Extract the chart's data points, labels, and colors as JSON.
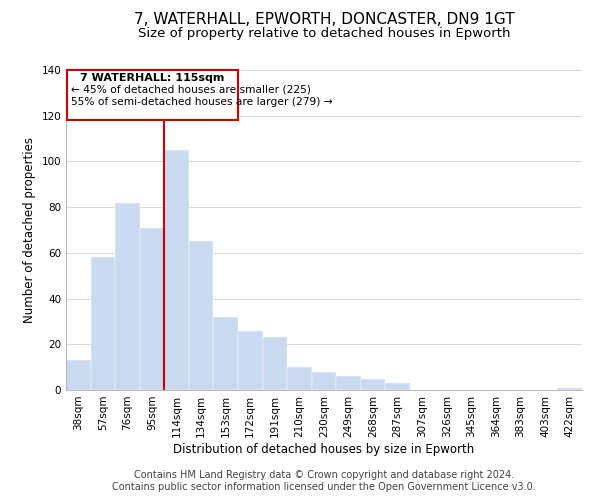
{
  "title": "7, WATERHALL, EPWORTH, DONCASTER, DN9 1GT",
  "subtitle": "Size of property relative to detached houses in Epworth",
  "xlabel": "Distribution of detached houses by size in Epworth",
  "ylabel": "Number of detached properties",
  "categories": [
    "38sqm",
    "57sqm",
    "76sqm",
    "95sqm",
    "114sqm",
    "134sqm",
    "153sqm",
    "172sqm",
    "191sqm",
    "210sqm",
    "230sqm",
    "249sqm",
    "268sqm",
    "287sqm",
    "307sqm",
    "326sqm",
    "345sqm",
    "364sqm",
    "383sqm",
    "403sqm",
    "422sqm"
  ],
  "values": [
    13,
    58,
    82,
    71,
    105,
    65,
    32,
    26,
    23,
    10,
    8,
    6,
    5,
    3,
    0,
    0,
    0,
    0,
    0,
    0,
    1
  ],
  "bar_color": "#c9d9f0",
  "highlight_bar_index": 4,
  "annotation_title": "7 WATERHALL: 115sqm",
  "annotation_line1": "← 45% of detached houses are smaller (225)",
  "annotation_line2": "55% of semi-detached houses are larger (279) →",
  "annotation_box_facecolor": "#ffffff",
  "annotation_box_edgecolor": "#cc0000",
  "ylim": [
    0,
    140
  ],
  "yticks": [
    0,
    20,
    40,
    60,
    80,
    100,
    120,
    140
  ],
  "footer_line1": "Contains HM Land Registry data © Crown copyright and database right 2024.",
  "footer_line2": "Contains public sector information licensed under the Open Government Licence v3.0.",
  "background_color": "#ffffff",
  "grid_color": "#d8d8d8",
  "title_fontsize": 11,
  "subtitle_fontsize": 9.5,
  "axis_label_fontsize": 8.5,
  "tick_fontsize": 7.5,
  "annotation_fontsize": 8,
  "footer_fontsize": 7
}
